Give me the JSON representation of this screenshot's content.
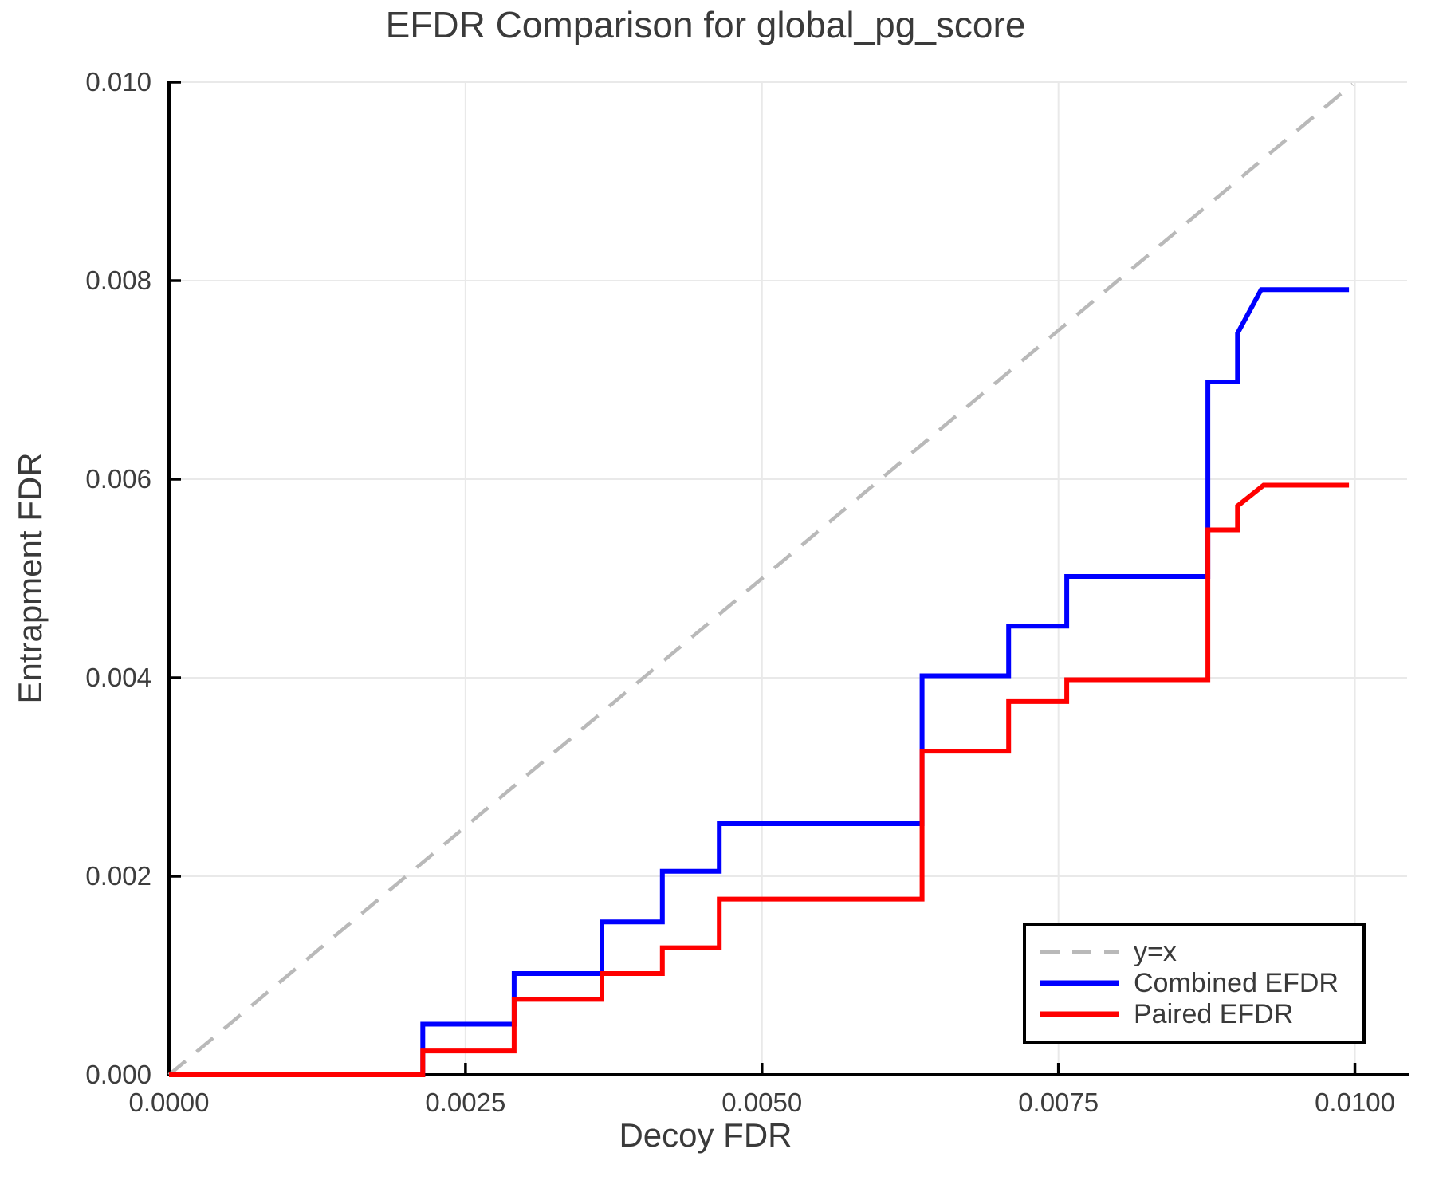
{
  "chart_data": {
    "type": "line",
    "title": "EFDR Comparison for global_pg_score",
    "xlabel": "Decoy FDR",
    "ylabel": "Entrapment FDR",
    "xlim": [
      0,
      0.01044
    ],
    "ylim": [
      0,
      0.01
    ],
    "grid": true,
    "legend_position": "lower right",
    "background_color": "#ffffff",
    "grid_color": "#e9e9e9",
    "spine_color": "#000000",
    "text_color": "#3a3a3a",
    "xticks": [
      {
        "value": 0.0,
        "label": "0.0000"
      },
      {
        "value": 0.0025,
        "label": "0.0025"
      },
      {
        "value": 0.005,
        "label": "0.0050"
      },
      {
        "value": 0.0075,
        "label": "0.0075"
      },
      {
        "value": 0.01,
        "label": "0.0100"
      }
    ],
    "yticks": [
      {
        "value": 0.0,
        "label": "0.000"
      },
      {
        "value": 0.002,
        "label": "0.002"
      },
      {
        "value": 0.004,
        "label": "0.004"
      },
      {
        "value": 0.006,
        "label": "0.006"
      },
      {
        "value": 0.008,
        "label": "0.008"
      },
      {
        "value": 0.01,
        "label": "0.010"
      }
    ],
    "series": [
      {
        "name": "y=x",
        "color": "#b9b9b9",
        "style": "dashed",
        "points": [
          [
            0,
            0
          ],
          [
            0.00998,
            0.00998
          ]
        ]
      },
      {
        "name": "Combined EFDR",
        "color": "#0000ff",
        "style": "solid",
        "points": [
          [
            0,
            0
          ],
          [
            0.00214,
            0
          ],
          [
            0.00214,
            0.00051
          ],
          [
            0.00291,
            0.00051
          ],
          [
            0.00291,
            0.00102
          ],
          [
            0.00365,
            0.00102
          ],
          [
            0.00365,
            0.00154
          ],
          [
            0.00416,
            0.00154
          ],
          [
            0.00416,
            0.00205
          ],
          [
            0.00464,
            0.00205
          ],
          [
            0.00464,
            0.00253
          ],
          [
            0.00635,
            0.00253
          ],
          [
            0.00635,
            0.00402
          ],
          [
            0.00708,
            0.00402
          ],
          [
            0.00708,
            0.00452
          ],
          [
            0.00757,
            0.00452
          ],
          [
            0.00757,
            0.00502
          ],
          [
            0.00876,
            0.00502
          ],
          [
            0.00876,
            0.00698
          ],
          [
            0.00901,
            0.00698
          ],
          [
            0.00901,
            0.00747
          ],
          [
            0.00921,
            0.00791
          ],
          [
            0.00995,
            0.00791
          ]
        ]
      },
      {
        "name": "Paired EFDR",
        "color": "#ff0000",
        "style": "solid",
        "points": [
          [
            0,
            0
          ],
          [
            0.00214,
            0
          ],
          [
            0.00214,
            0.00024
          ],
          [
            0.00291,
            0.00024
          ],
          [
            0.00291,
            0.00076
          ],
          [
            0.00365,
            0.00076
          ],
          [
            0.00365,
            0.00102
          ],
          [
            0.00416,
            0.00102
          ],
          [
            0.00416,
            0.00128
          ],
          [
            0.00464,
            0.00128
          ],
          [
            0.00464,
            0.00177
          ],
          [
            0.00635,
            0.00177
          ],
          [
            0.00635,
            0.00326
          ],
          [
            0.00708,
            0.00326
          ],
          [
            0.00708,
            0.00376
          ],
          [
            0.00757,
            0.00376
          ],
          [
            0.00757,
            0.00398
          ],
          [
            0.00876,
            0.00398
          ],
          [
            0.00876,
            0.00549
          ],
          [
            0.00901,
            0.00549
          ],
          [
            0.00901,
            0.00573
          ],
          [
            0.00923,
            0.00594
          ],
          [
            0.00995,
            0.00594
          ]
        ]
      }
    ]
  }
}
